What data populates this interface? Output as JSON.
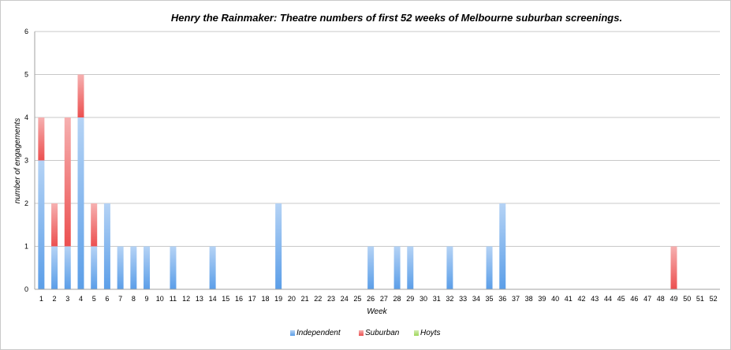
{
  "chart_data": {
    "type": "bar",
    "stacked": true,
    "title": "Henry the Rainmaker: Theatre numbers of first 52 weeks of Melbourne suburban screenings.",
    "xlabel": "Week",
    "ylabel": "number of engagements",
    "ylim": [
      0,
      6
    ],
    "yticks": [
      "0",
      "1",
      "2",
      "3",
      "4",
      "5",
      "6"
    ],
    "grid": true,
    "legend_position": "bottom",
    "categories": [
      "1",
      "2",
      "3",
      "4",
      "5",
      "6",
      "7",
      "8",
      "9",
      "10",
      "11",
      "12",
      "13",
      "14",
      "15",
      "16",
      "17",
      "18",
      "19",
      "20",
      "21",
      "22",
      "23",
      "24",
      "25",
      "26",
      "27",
      "28",
      "29",
      "30",
      "31",
      "32",
      "33",
      "34",
      "35",
      "36",
      "37",
      "38",
      "39",
      "40",
      "41",
      "42",
      "43",
      "44",
      "45",
      "46",
      "47",
      "48",
      "49",
      "50",
      "51",
      "52"
    ],
    "series": [
      {
        "name": "Independent",
        "color": "#5b9ee8",
        "values": [
          3,
          1,
          1,
          4,
          1,
          2,
          1,
          1,
          1,
          0,
          1,
          0,
          0,
          1,
          0,
          0,
          0,
          0,
          2,
          0,
          0,
          0,
          0,
          0,
          0,
          1,
          0,
          1,
          1,
          0,
          0,
          1,
          0,
          0,
          1,
          2,
          0,
          0,
          0,
          0,
          0,
          0,
          0,
          0,
          0,
          0,
          0,
          0,
          0,
          0,
          0,
          0
        ]
      },
      {
        "name": "Suburban",
        "color": "#ec5050",
        "values": [
          1,
          1,
          3,
          1,
          1,
          0,
          0,
          0,
          0,
          0,
          0,
          0,
          0,
          0,
          0,
          0,
          0,
          0,
          0,
          0,
          0,
          0,
          0,
          0,
          0,
          0,
          0,
          0,
          0,
          0,
          0,
          0,
          0,
          0,
          0,
          0,
          0,
          0,
          0,
          0,
          0,
          0,
          0,
          0,
          0,
          0,
          0,
          0,
          1,
          0,
          0,
          0
        ]
      },
      {
        "name": "Hoyts",
        "color": "#9fd65a",
        "values": [
          0,
          0,
          0,
          0,
          0,
          0,
          0,
          0,
          0,
          0,
          0,
          0,
          0,
          0,
          0,
          0,
          0,
          0,
          0,
          0,
          0,
          0,
          0,
          0,
          0,
          0,
          0,
          0,
          0,
          0,
          0,
          0,
          0,
          0,
          0,
          0,
          0,
          0,
          0,
          0,
          0,
          0,
          0,
          0,
          0,
          0,
          0,
          0,
          0,
          0,
          0,
          0
        ]
      }
    ]
  }
}
